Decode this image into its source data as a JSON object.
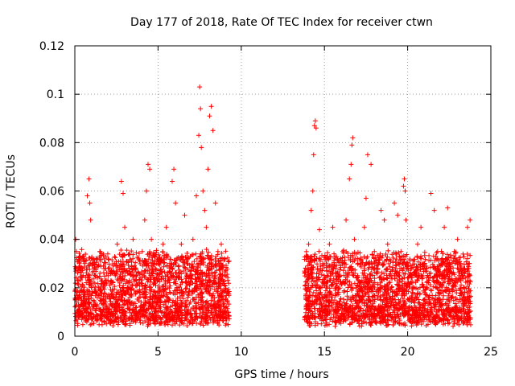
{
  "chart_data": {
    "type": "scatter",
    "title": "Day 177 of 2018, Rate Of TEC Index for receiver ctwn",
    "xlabel": "GPS time / hours",
    "ylabel": "ROTI / TECUs",
    "xlim": [
      0,
      25
    ],
    "ylim": [
      0,
      0.12
    ],
    "xticks": [
      0,
      5,
      10,
      15,
      20,
      25
    ],
    "xtick_labels": [
      "0",
      "5",
      "10",
      "15",
      "20",
      "25"
    ],
    "yticks": [
      0,
      0.02,
      0.04,
      0.06,
      0.08,
      0.1,
      0.12
    ],
    "ytick_labels": [
      "0",
      "0.02",
      "0.04",
      "0.06",
      "0.08",
      "0.1",
      "0.12"
    ],
    "grid": true,
    "marker": "plus",
    "color": "#ff0000",
    "data_gap_hours": [
      9.3,
      13.8
    ],
    "series": [
      {
        "name": "ROTI",
        "x": [
          0.05,
          0.1,
          0.25,
          0.35,
          0.5,
          0.6,
          0.75,
          0.85,
          0.9,
          0.95,
          1.05,
          1.2,
          1.35,
          1.5,
          1.7,
          1.85,
          2.0,
          2.2,
          2.4,
          2.55,
          2.7,
          2.8,
          2.9,
          3.0,
          3.15,
          3.3,
          3.5,
          3.7,
          3.9,
          4.05,
          4.2,
          4.3,
          4.4,
          4.5,
          4.6,
          4.75,
          4.9,
          5.1,
          5.3,
          5.5,
          5.7,
          5.85,
          5.95,
          6.05,
          6.2,
          6.4,
          6.6,
          6.8,
          6.95,
          7.1,
          7.3,
          7.45,
          7.5,
          7.55,
          7.6,
          7.7,
          7.8,
          7.9,
          8.0,
          8.1,
          8.2,
          8.3,
          8.45,
          8.6,
          8.8,
          9.0,
          9.2,
          13.9,
          14.05,
          14.2,
          14.3,
          14.35,
          14.4,
          14.45,
          14.5,
          14.7,
          14.9,
          15.1,
          15.3,
          15.5,
          15.7,
          15.9,
          16.1,
          16.3,
          16.5,
          16.6,
          16.65,
          16.7,
          16.8,
          17.0,
          17.2,
          17.4,
          17.5,
          17.6,
          17.8,
          18.0,
          18.2,
          18.4,
          18.6,
          18.8,
          19.0,
          19.2,
          19.4,
          19.6,
          19.75,
          19.8,
          19.85,
          19.9,
          20.0,
          20.2,
          20.4,
          20.6,
          20.8,
          21.0,
          21.2,
          21.4,
          21.6,
          21.8,
          22.0,
          22.2,
          22.4,
          22.6,
          22.8,
          23.0,
          23.2,
          23.4,
          23.6,
          23.75
        ],
        "y": [
          0.04,
          0.035,
          0.016,
          0.028,
          0.012,
          0.03,
          0.058,
          0.065,
          0.055,
          0.048,
          0.018,
          0.022,
          0.013,
          0.035,
          0.02,
          0.014,
          0.025,
          0.017,
          0.03,
          0.038,
          0.022,
          0.064,
          0.059,
          0.045,
          0.02,
          0.028,
          0.04,
          0.025,
          0.018,
          0.035,
          0.048,
          0.06,
          0.071,
          0.069,
          0.04,
          0.022,
          0.03,
          0.015,
          0.038,
          0.045,
          0.028,
          0.064,
          0.069,
          0.055,
          0.02,
          0.038,
          0.05,
          0.03,
          0.025,
          0.04,
          0.058,
          0.083,
          0.103,
          0.094,
          0.078,
          0.06,
          0.052,
          0.045,
          0.069,
          0.091,
          0.095,
          0.085,
          0.055,
          0.035,
          0.038,
          0.025,
          0.018,
          0.033,
          0.038,
          0.052,
          0.06,
          0.075,
          0.087,
          0.089,
          0.086,
          0.044,
          0.03,
          0.02,
          0.038,
          0.045,
          0.028,
          0.025,
          0.035,
          0.048,
          0.065,
          0.071,
          0.079,
          0.082,
          0.04,
          0.025,
          0.03,
          0.045,
          0.057,
          0.075,
          0.071,
          0.035,
          0.028,
          0.052,
          0.048,
          0.038,
          0.025,
          0.055,
          0.05,
          0.035,
          0.062,
          0.065,
          0.06,
          0.048,
          0.03,
          0.025,
          0.02,
          0.038,
          0.045,
          0.03,
          0.025,
          0.059,
          0.052,
          0.035,
          0.03,
          0.045,
          0.053,
          0.028,
          0.035,
          0.04,
          0.03,
          0.02,
          0.045,
          0.048
        ]
      }
    ],
    "dense_band": {
      "segments_hours": [
        [
          0,
          9.3
        ],
        [
          13.8,
          23.8
        ]
      ],
      "typical_range": [
        0.004,
        0.032
      ]
    }
  }
}
